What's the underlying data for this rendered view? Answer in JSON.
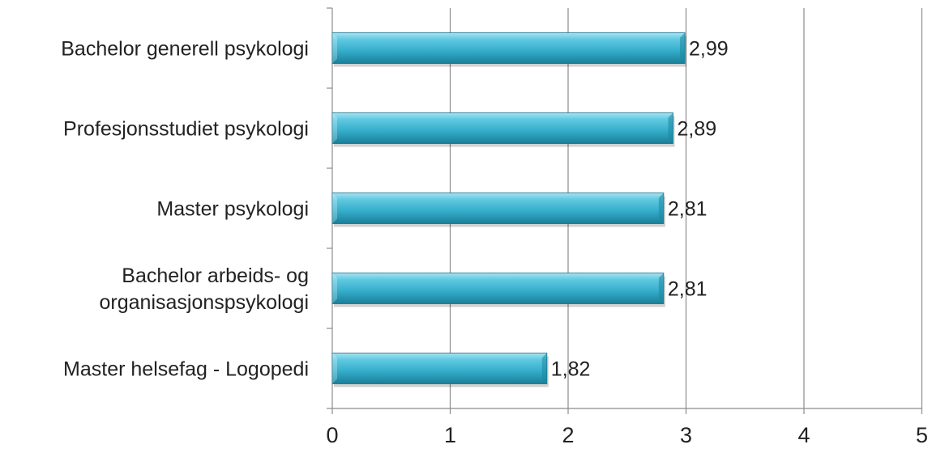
{
  "chart_data": {
    "type": "bar",
    "orientation": "horizontal",
    "title": "",
    "xlabel": "",
    "ylabel": "",
    "categories": [
      [
        "Bachelor generell psykologi"
      ],
      [
        "Profesjonsstudiet psykologi"
      ],
      [
        "Master psykologi"
      ],
      [
        "Bachelor arbeids- og",
        "organisasjonspsykologi"
      ],
      [
        "Master helsefag - Logopedi"
      ]
    ],
    "values": [
      2.99,
      2.89,
      2.81,
      2.81,
      1.82
    ],
    "value_labels": [
      "2,99",
      "2,89",
      "2,81",
      "2,81",
      "1,82"
    ],
    "xlim": [
      0,
      5
    ],
    "xticks": [
      0,
      1,
      2,
      3,
      4,
      5
    ],
    "xtick_labels": [
      "0",
      "1",
      "2",
      "3",
      "4",
      "5"
    ],
    "grid": "vertical",
    "legend": "none",
    "bar_color": "#3cb4d0"
  }
}
